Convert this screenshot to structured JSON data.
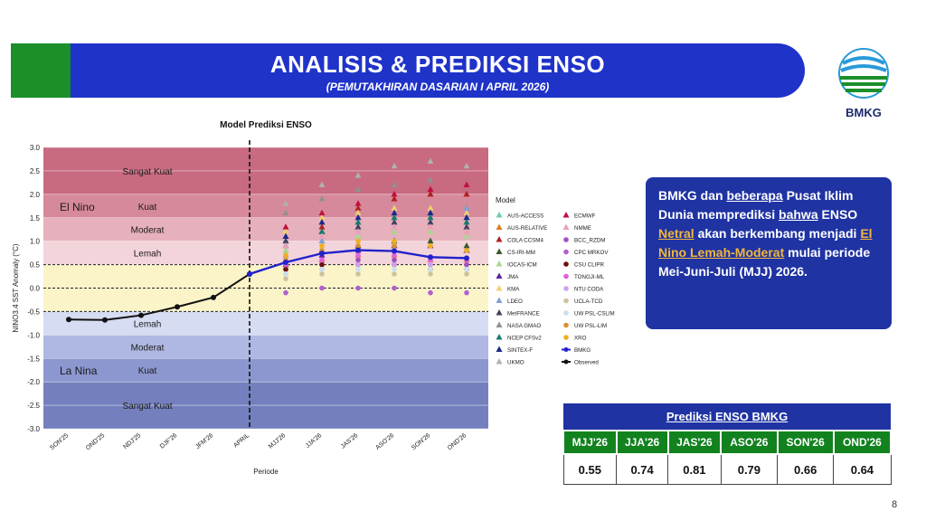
{
  "header": {
    "title": "ANALISIS & PREDIKSI ENSO",
    "subtitle": "(PEMUTAKHIRAN DASARIAN I APRIL 2026)"
  },
  "logo": {
    "text": "BMKG"
  },
  "info_box": {
    "p1": "BMKG dan ",
    "p2": "beberapa",
    "p3": " Pusat Iklim Dunia memprediksi ",
    "p4": "bahwa",
    "p5": " ENSO ",
    "p6": "Netral",
    "p7": " akan berkembang menjadi ",
    "p8": "El Nino Lemah-Moderat",
    "p9": " mulai periode Mei-Juni-Juli (MJJ) 2026."
  },
  "prediction_table": {
    "title": "Prediksi ENSO BMKG",
    "headers": [
      "MJJ'26",
      "JJA'26",
      "JAS'26",
      "ASO'26",
      "SON'26",
      "OND'26"
    ],
    "values": [
      "0.55",
      "0.74",
      "0.81",
      "0.79",
      "0.66",
      "0.64"
    ]
  },
  "page_number": "8",
  "chart_data": {
    "type": "line",
    "title": "Model Prediksi ENSO",
    "xlabel": "Periode",
    "ylabel": "NINO3.4 SST Anomaly (°C)",
    "ylim": [
      -3.0,
      3.0
    ],
    "yticks": [
      "3.0",
      "2.5",
      "2.0",
      "1.5",
      "1.0",
      "0.5",
      "0.0",
      "-0.5",
      "-1.0",
      "-1.5",
      "-2.0",
      "-2.5",
      "-3.0"
    ],
    "categories": [
      "SON'25",
      "OND'25",
      "NDJ'25",
      "DJF'26",
      "JFM'26",
      "APRIL",
      "MJJ'26",
      "JJA'26",
      "JAS'26",
      "ASO'26",
      "SON'26",
      "OND'26"
    ],
    "bands": [
      {
        "from": 2.0,
        "to": 3.0,
        "color": "#c86a80"
      },
      {
        "from": 1.5,
        "to": 2.0,
        "color": "#d6899a"
      },
      {
        "from": 1.0,
        "to": 1.5,
        "color": "#e6b0bc"
      },
      {
        "from": 0.5,
        "to": 1.0,
        "color": "#f3d4da"
      },
      {
        "from": -0.5,
        "to": 0.5,
        "color": "#fbf4c8"
      },
      {
        "from": -1.0,
        "to": -0.5,
        "color": "#d6dcf2"
      },
      {
        "from": -1.5,
        "to": -1.0,
        "color": "#aeb8e2"
      },
      {
        "from": -2.0,
        "to": -1.5,
        "color": "#8c97cf"
      },
      {
        "from": -3.0,
        "to": -2.0,
        "color": "#7480bd"
      }
    ],
    "band_labels": [
      {
        "text": "Sangat Kuat",
        "y": 2.5
      },
      {
        "text": "Kuat",
        "y": 1.75
      },
      {
        "text": "Moderat",
        "y": 1.25
      },
      {
        "text": "Lemah",
        "y": 0.75
      },
      {
        "text": "Lemah",
        "y": -0.75
      },
      {
        "text": "Moderat",
        "y": -1.25
      },
      {
        "text": "Kuat",
        "y": -1.75
      },
      {
        "text": "Sangat Kuat",
        "y": -2.5
      }
    ],
    "phase_labels": [
      {
        "text": "El Nino",
        "y": 1.75
      },
      {
        "text": "La Nina",
        "y": -1.75
      }
    ],
    "observed": {
      "name": "Observed",
      "color": "#111111",
      "x": [
        "SON'25",
        "OND'25",
        "NDJ'25",
        "DJF'26",
        "JFM'26",
        "APRIL"
      ],
      "values": [
        -0.67,
        -0.68,
        -0.58,
        -0.4,
        -0.2,
        0.3
      ]
    },
    "bmkg": {
      "name": "BMKG",
      "color": "#2222cc",
      "x": [
        "APRIL",
        "MJJ'26",
        "JJA'26",
        "JAS'26",
        "ASO'26",
        "SON'26",
        "OND'26"
      ],
      "values": [
        0.3,
        0.55,
        0.74,
        0.81,
        0.79,
        0.66,
        0.64
      ]
    },
    "models": [
      {
        "name": "AUS-ACCESS",
        "color": "#6fcfa0",
        "shape": "triangle",
        "values": [
          1.0,
          1.2,
          1.4,
          1.5,
          1.6,
          1.5
        ]
      },
      {
        "name": "AUS-RELATIVE",
        "color": "#e07b20",
        "shape": "triangle",
        "values": [
          0.5,
          0.6,
          0.7,
          0.7,
          0.6,
          0.6
        ]
      },
      {
        "name": "COLA CCSM4",
        "color": "#b02020",
        "shape": "triangle",
        "values": [
          0.9,
          1.3,
          1.7,
          1.9,
          2.0,
          2.0
        ]
      },
      {
        "name": "CS-IRI-MM",
        "color": "#3a5a2a",
        "shape": "triangle",
        "values": [
          0.6,
          0.8,
          0.9,
          1.0,
          1.0,
          0.9
        ]
      },
      {
        "name": "IOCAS-ICM",
        "color": "#a8d890",
        "shape": "triangle",
        "values": [
          0.8,
          1.0,
          1.1,
          1.2,
          1.2,
          1.1
        ]
      },
      {
        "name": "JMA",
        "color": "#6020a0",
        "shape": "triangle",
        "values": [
          0.5,
          0.7,
          0.8,
          0.9,
          0.9,
          0.8
        ]
      },
      {
        "name": "KMA",
        "color": "#f0d070",
        "shape": "triangle",
        "values": [
          1.2,
          1.5,
          1.6,
          1.7,
          1.7,
          1.6
        ]
      },
      {
        "name": "LDEO",
        "color": "#7aa0d8",
        "shape": "triangle",
        "values": [
          0.7,
          1.0,
          1.3,
          1.5,
          1.6,
          1.7
        ]
      },
      {
        "name": "MetFRANCE",
        "color": "#404060",
        "shape": "triangle",
        "values": [
          1.0,
          1.2,
          1.3,
          1.4,
          1.4,
          1.3
        ]
      },
      {
        "name": "NASA GMAO",
        "color": "#909090",
        "shape": "triangle",
        "values": [
          1.6,
          1.9,
          2.1,
          2.2,
          2.3,
          2.2
        ]
      },
      {
        "name": "NCEP CFSv2",
        "color": "#1a7a6a",
        "shape": "triangle",
        "values": [
          0.9,
          1.2,
          1.4,
          1.5,
          1.5,
          1.4
        ]
      },
      {
        "name": "SINTEX-F",
        "color": "#1a2a8a",
        "shape": "triangle",
        "values": [
          1.1,
          1.4,
          1.5,
          1.6,
          1.6,
          1.5
        ]
      },
      {
        "name": "UKMO",
        "color": "#b0b0b0",
        "shape": "triangle",
        "values": [
          1.8,
          2.2,
          2.4,
          2.6,
          2.7,
          2.6
        ]
      },
      {
        "name": "ECMWF",
        "color": "#c01040",
        "shape": "triangle",
        "values": [
          1.3,
          1.6,
          1.8,
          2.0,
          2.1,
          2.2
        ]
      },
      {
        "name": "NMME",
        "color": "#e8a0b8",
        "shape": "triangle",
        "values": [
          0.9,
          1.1,
          1.2,
          1.3,
          1.3,
          1.2
        ]
      },
      {
        "name": "BCC_RZDM",
        "color": "#a050c0",
        "shape": "circle",
        "values": [
          0.4,
          0.5,
          0.6,
          0.6,
          0.5,
          0.5
        ]
      },
      {
        "name": "CPC MRKOV",
        "color": "#b060d0",
        "shape": "circle",
        "values": [
          -0.1,
          0.0,
          0.0,
          0.0,
          -0.1,
          -0.1
        ]
      },
      {
        "name": "CSU CLIPR",
        "color": "#6a1010",
        "shape": "circle",
        "values": [
          0.4,
          0.5,
          0.5,
          0.5,
          0.4,
          0.4
        ]
      },
      {
        "name": "TONGJI-ML",
        "color": "#e060e0",
        "shape": "circle",
        "values": [
          0.5,
          0.6,
          0.7,
          0.7,
          0.6,
          0.6
        ]
      },
      {
        "name": "NTU CODA",
        "color": "#d0a0f0",
        "shape": "circle",
        "values": [
          0.3,
          0.4,
          0.5,
          0.5,
          0.5,
          0.4
        ]
      },
      {
        "name": "UCLA-TCD",
        "color": "#d0c0a0",
        "shape": "circle",
        "values": [
          0.2,
          0.3,
          0.3,
          0.3,
          0.3,
          0.3
        ]
      },
      {
        "name": "UW PSL-CSLIM",
        "color": "#c8e0f0",
        "shape": "circle",
        "values": [
          0.3,
          0.4,
          0.4,
          0.4,
          0.4,
          0.4
        ]
      },
      {
        "name": "UW PSL-LIM",
        "color": "#d89030",
        "shape": "circle",
        "values": [
          0.6,
          0.8,
          0.9,
          0.9,
          0.9,
          0.8
        ]
      },
      {
        "name": "XRO",
        "color": "#f0b020",
        "shape": "circle",
        "values": [
          0.7,
          0.9,
          1.0,
          1.0,
          0.9,
          0.8
        ]
      },
      {
        "name": "BMKG",
        "color": "#2222cc",
        "shape": "line",
        "values": []
      },
      {
        "name": "Observed",
        "color": "#111111",
        "shape": "line",
        "values": []
      }
    ],
    "legend_title": "Model",
    "legend_position": "right"
  }
}
